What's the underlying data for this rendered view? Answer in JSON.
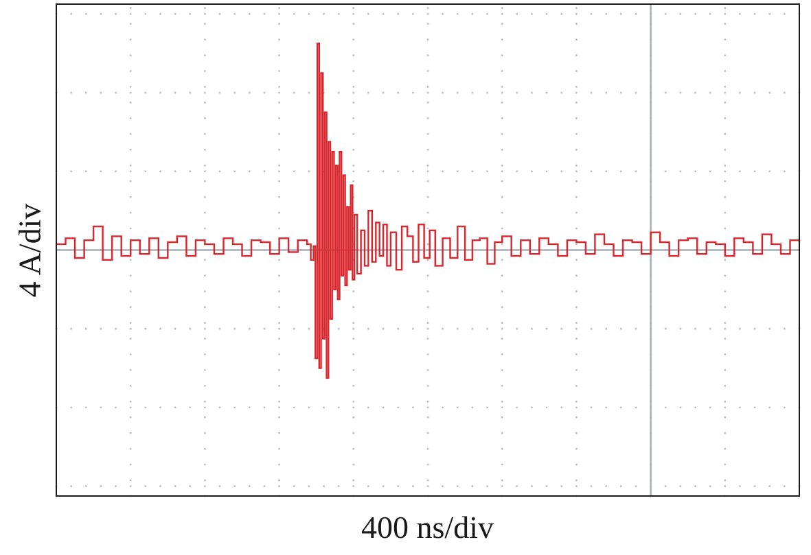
{
  "chart_data": {
    "type": "line",
    "title": "",
    "xlabel": "400 ns/div",
    "ylabel": "4 A/div",
    "x_unit": "ns",
    "y_unit": "A",
    "x_per_div": 400,
    "y_per_div": 4,
    "xlim": [
      0,
      4000
    ],
    "ylim": [
      -12.5,
      12.5
    ],
    "grid": "dotted",
    "cursor_x": 3200,
    "series": [
      {
        "color": "#d9252c",
        "x": [
          0,
          50,
          100,
          150,
          200,
          250,
          300,
          350,
          400,
          450,
          500,
          550,
          600,
          650,
          700,
          750,
          800,
          850,
          900,
          950,
          1000,
          1050,
          1100,
          1150,
          1200,
          1250,
          1300,
          1350,
          1370,
          1385,
          1395,
          1405,
          1415,
          1425,
          1435,
          1445,
          1455,
          1465,
          1475,
          1485,
          1495,
          1505,
          1515,
          1525,
          1535,
          1545,
          1555,
          1565,
          1575,
          1585,
          1595,
          1605,
          1620,
          1640,
          1660,
          1680,
          1700,
          1720,
          1740,
          1760,
          1780,
          1800,
          1830,
          1860,
          1890,
          1920,
          1950,
          1980,
          2010,
          2040,
          2080,
          2120,
          2160,
          2200,
          2240,
          2280,
          2320,
          2360,
          2400,
          2450,
          2500,
          2550,
          2600,
          2650,
          2700,
          2750,
          2800,
          2850,
          2900,
          2950,
          3000,
          3050,
          3100,
          3150,
          3200,
          3250,
          3300,
          3350,
          3400,
          3450,
          3500,
          3550,
          3600,
          3650,
          3700,
          3750,
          3800,
          3850,
          3900,
          3950,
          4000
        ],
        "y": [
          0.3,
          0.6,
          -0.4,
          0.5,
          1.2,
          -0.5,
          0.7,
          -0.3,
          0.5,
          -0.2,
          0.6,
          -0.4,
          0.4,
          0.7,
          -0.3,
          0.5,
          0.3,
          -0.2,
          0.6,
          0.3,
          -0.3,
          0.5,
          0.4,
          -0.2,
          0.6,
          -0.1,
          0.5,
          0.3,
          -0.5,
          0.2,
          -5.5,
          10.5,
          -6.0,
          9.0,
          -4.5,
          7.0,
          -6.5,
          5.5,
          -3.5,
          5.0,
          -2.0,
          4.3,
          -2.5,
          5.0,
          -1.3,
          3.8,
          -1.8,
          2.2,
          -1.0,
          3.3,
          -1.5,
          1.8,
          -1.2,
          1.0,
          -0.8,
          2.0,
          -0.6,
          1.4,
          -0.3,
          1.3,
          -0.8,
          0.9,
          -1.0,
          1.2,
          0.7,
          -0.6,
          1.3,
          -0.4,
          1.0,
          -0.8,
          0.6,
          -0.4,
          1.2,
          -0.5,
          0.5,
          0.6,
          -0.7,
          0.4,
          0.7,
          -0.3,
          0.5,
          -0.2,
          0.6,
          0.3,
          -0.3,
          0.5,
          0.4,
          -0.2,
          0.8,
          0.3,
          -0.3,
          0.5,
          0.4,
          -0.2,
          0.9,
          0.4,
          -0.3,
          0.5,
          0.6,
          -0.2,
          0.4,
          0.3,
          -0.3,
          0.6,
          0.4,
          -0.2,
          0.8,
          0.3,
          -0.2,
          0.5,
          0.4
        ]
      }
    ]
  }
}
